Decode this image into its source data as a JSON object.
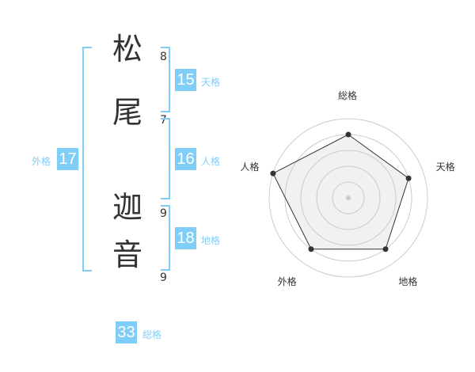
{
  "name": {
    "chars": [
      {
        "char": "松",
        "strokes": "8"
      },
      {
        "char": "尾",
        "strokes": "7"
      },
      {
        "char": "迦",
        "strokes": "9"
      },
      {
        "char": "音",
        "strokes": "9"
      }
    ]
  },
  "kaku": {
    "tenkaku": {
      "value": "15",
      "label": "天格"
    },
    "jinkaku": {
      "value": "16",
      "label": "人格"
    },
    "chikaku": {
      "value": "18",
      "label": "地格"
    },
    "gaikaku": {
      "value": "17",
      "label": "外格"
    },
    "soukaku": {
      "value": "33",
      "label": "総格"
    }
  },
  "colors": {
    "accent": "#80cdf8",
    "text": "#333333"
  },
  "chart_data": {
    "type": "radar",
    "axes": [
      "総格",
      "天格",
      "地格",
      "外格",
      "人格"
    ],
    "values": [
      4,
      4,
      4,
      4,
      5
    ],
    "range": [
      0,
      5
    ],
    "rings": 5
  }
}
